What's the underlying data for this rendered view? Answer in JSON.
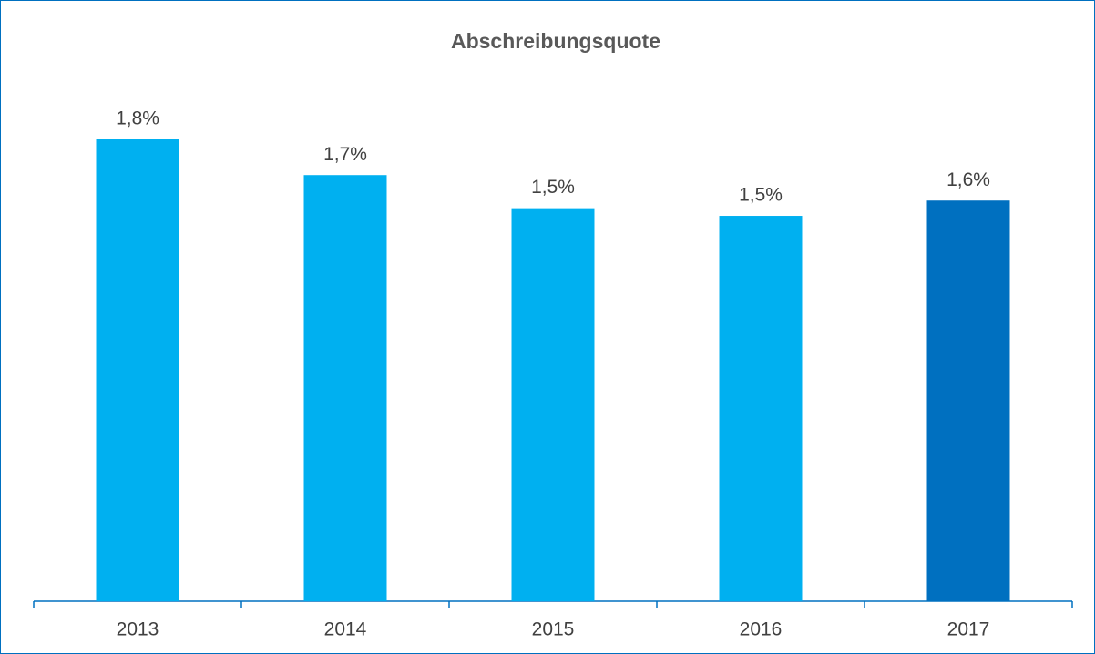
{
  "chart_data": {
    "type": "bar",
    "title": "Abschreibungsquote",
    "categories": [
      "2013",
      "2014",
      "2015",
      "2016",
      "2017"
    ],
    "values": [
      1.81,
      1.67,
      1.54,
      1.51,
      1.57
    ],
    "value_labels": [
      "1,8%",
      "1,7%",
      "1,5%",
      "1,5%",
      "1,6%"
    ],
    "colors": [
      "#00b0f0",
      "#00b0f0",
      "#00b0f0",
      "#00b0f0",
      "#0070c0"
    ]
  }
}
